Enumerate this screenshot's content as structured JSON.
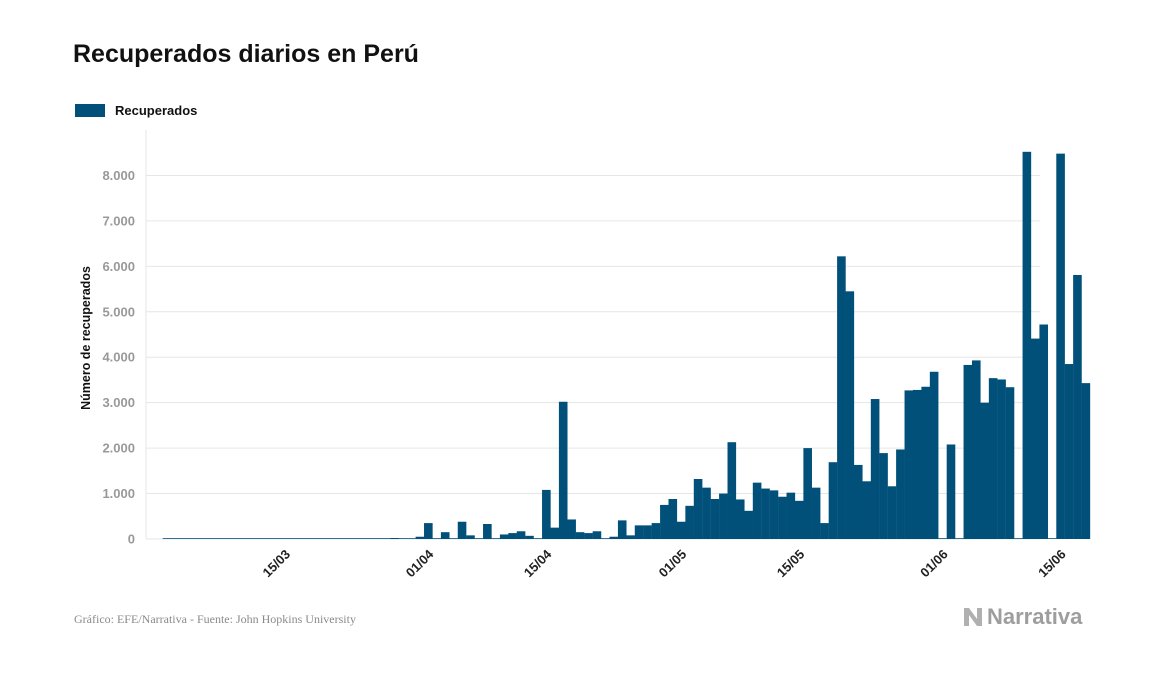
{
  "page": {
    "title": "Recuperados diarios en Perú",
    "footer": "Gráfico: EFE/Narrativa - Fuente: John Hopkins University",
    "brand": "Narrativa",
    "brand_icon": "narrativa-logo-icon"
  },
  "colors": {
    "bar": "#01507a",
    "grid": "#e6e6e6",
    "tick_text": "#999999",
    "title": "#111111"
  },
  "chart_data": {
    "type": "bar",
    "title": "Recuperados diarios en Perú",
    "ylabel": "Número de recuperados",
    "xlabel": "",
    "ylim": [
      0,
      9000
    ],
    "grid": true,
    "legend_position": "top-left",
    "yticks": [
      0,
      1000,
      2000,
      3000,
      4000,
      5000,
      6000,
      7000,
      8000
    ],
    "ytick_labels": [
      "0",
      "1.000",
      "2.000",
      "3.000",
      "4.000",
      "5.000",
      "6.000",
      "7.000",
      "8.000"
    ],
    "xtick_labels": [
      {
        "day": 14,
        "label": "15/03"
      },
      {
        "day": 31,
        "label": "01/04"
      },
      {
        "day": 45,
        "label": "15/04"
      },
      {
        "day": 61,
        "label": "01/05"
      },
      {
        "day": 75,
        "label": "15/05"
      },
      {
        "day": 92,
        "label": "01/06"
      },
      {
        "day": 106,
        "label": "15/06"
      }
    ],
    "x_start_date": "2020-03-01",
    "series": [
      {
        "name": "Recuperados",
        "values": [
          0,
          0,
          0,
          0,
          0,
          0,
          0,
          0,
          0,
          0,
          0,
          0,
          0,
          0,
          0,
          0,
          0,
          0,
          0,
          0,
          0,
          0,
          0,
          0,
          0,
          0,
          0,
          20,
          0,
          0,
          50,
          350,
          0,
          150,
          0,
          380,
          80,
          0,
          330,
          0,
          100,
          130,
          170,
          70,
          0,
          1080,
          250,
          3020,
          430,
          150,
          130,
          170,
          0,
          50,
          410,
          80,
          300,
          300,
          350,
          750,
          880,
          380,
          730,
          1320,
          1130,
          880,
          1000,
          2130,
          870,
          620,
          1240,
          1110,
          1070,
          930,
          1020,
          840,
          2000,
          1130,
          350,
          1690,
          6220,
          5450,
          1630,
          1270,
          3080,
          1890,
          1160,
          1970,
          3270,
          3280,
          3350,
          3680,
          0,
          2080,
          0,
          3830,
          3930,
          3000,
          3540,
          3510,
          3340,
          0,
          8520,
          4410,
          4720,
          0,
          8480,
          3850,
          5810,
          3430
        ]
      }
    ]
  }
}
